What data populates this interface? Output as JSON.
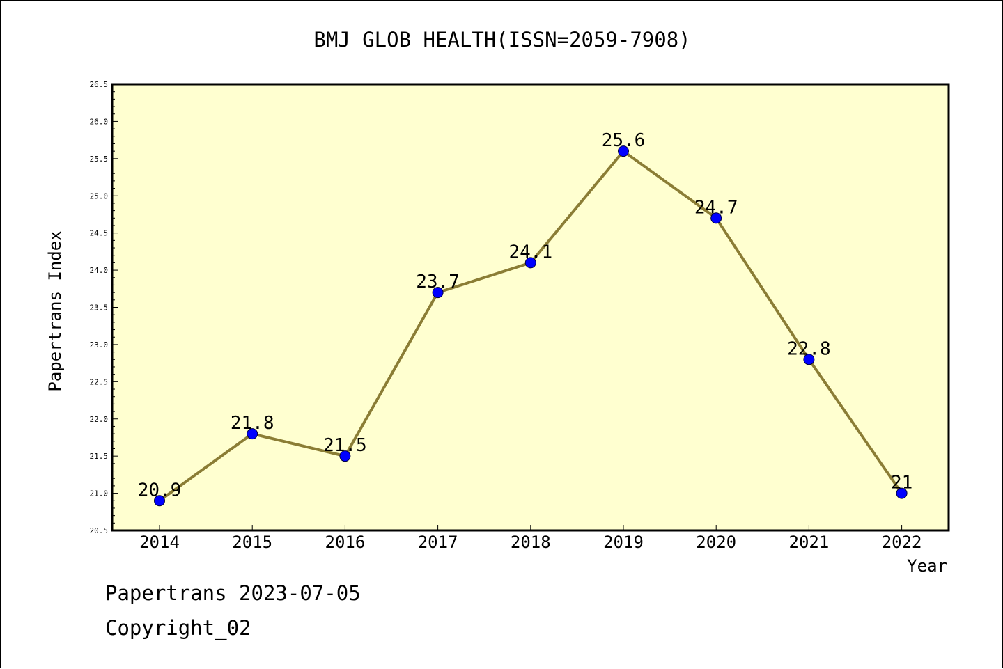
{
  "chart_data": {
    "type": "line",
    "title": "BMJ GLOB HEALTH(ISSN=2059-7908)",
    "xlabel": "Year",
    "ylabel": "Papertrans Index",
    "categories": [
      "2014",
      "2015",
      "2016",
      "2017",
      "2018",
      "2019",
      "2020",
      "2021",
      "2022"
    ],
    "series": [
      {
        "values": [
          20.9,
          21.8,
          21.5,
          23.7,
          24.1,
          25.6,
          24.7,
          22.8,
          21.0
        ],
        "labels": [
          "20.9",
          "21.8",
          "21.5",
          "23.7",
          "24.1",
          "25.6",
          "24.7",
          "22.8",
          "21"
        ]
      }
    ],
    "ylim": [
      20.5,
      26.5
    ],
    "yticks": [
      "20.5",
      "21.0",
      "21.5",
      "22.0",
      "22.5",
      "23.0",
      "23.5",
      "24.0",
      "24.5",
      "25.0",
      "25.5",
      "26.0",
      "26.5"
    ],
    "grid": false,
    "colors": {
      "plot_background": "#ffffd0",
      "line": "#8b7d35",
      "marker": "#0000ff"
    }
  },
  "footer": {
    "date_text": "Papertrans 2023-07-05",
    "copyright_text": "Copyright_02"
  }
}
